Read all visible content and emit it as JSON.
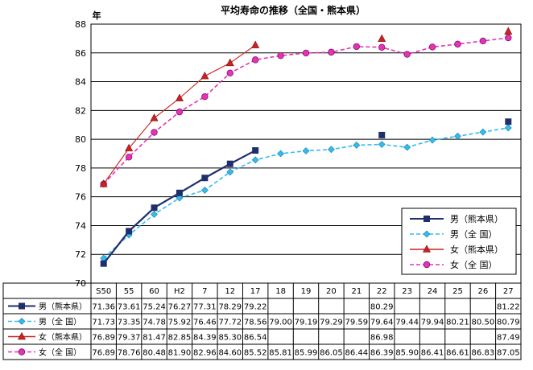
{
  "chart_data": {
    "type": "line",
    "title": "平均寿命の推移（全国・熊本県）",
    "ylabel": "年",
    "ylim": [
      70,
      88
    ],
    "yticks": [
      70,
      72,
      74,
      76,
      78,
      80,
      82,
      84,
      86,
      88
    ],
    "grid": true,
    "legend_position": "lower-right",
    "categories": [
      "S50",
      "55",
      "60",
      "H2",
      "7",
      "12",
      "17",
      "18",
      "19",
      "20",
      "21",
      "22",
      "23",
      "24",
      "25",
      "26",
      "27"
    ],
    "series": [
      {
        "name": "男（熊本県）",
        "table_label": "男（熊本県）",
        "color": "#1f2f6b",
        "style": "solid",
        "marker": "square",
        "segments": [
          [
            0,
            6
          ]
        ],
        "values": [
          71.36,
          73.61,
          75.24,
          76.27,
          77.31,
          78.29,
          79.22,
          null,
          null,
          null,
          null,
          80.29,
          null,
          null,
          null,
          null,
          81.22
        ],
        "table_values": [
          "71.36",
          "73.61",
          "75.24",
          "76.27",
          "77.31",
          "78.29",
          "79.22",
          "",
          "",
          "",
          "",
          "80.29",
          "",
          "",
          "",
          "",
          "81.22"
        ]
      },
      {
        "name": "男（全 国）",
        "table_label": "男（全 国）",
        "color": "#33bbee",
        "style": "dashed",
        "marker": "diamond",
        "segments": [
          [
            0,
            16
          ]
        ],
        "values": [
          71.73,
          73.35,
          74.78,
          75.92,
          76.46,
          77.72,
          78.56,
          79.0,
          79.19,
          79.29,
          79.59,
          79.64,
          79.44,
          79.94,
          80.21,
          80.5,
          80.79
        ],
        "table_values": [
          "71.73",
          "73.35",
          "74.78",
          "75.92",
          "76.46",
          "77.72",
          "78.56",
          "79.00",
          "79.19",
          "79.29",
          "79.59",
          "79.64",
          "79.44",
          "79.94",
          "80.21",
          "80.50",
          "80.79"
        ]
      },
      {
        "name": "女（熊本県）",
        "table_label": "女（熊本県）",
        "color": "#cc2222",
        "style": "solid",
        "marker": "triangle",
        "segments": [
          [
            0,
            6
          ]
        ],
        "values": [
          76.89,
          79.37,
          81.47,
          82.85,
          84.39,
          85.3,
          86.54,
          null,
          null,
          null,
          null,
          86.98,
          null,
          null,
          null,
          null,
          87.49
        ],
        "table_values": [
          "76.89",
          "79.37",
          "81.47",
          "82.85",
          "84.39",
          "85.30",
          "86.54",
          "",
          "",
          "",
          "",
          "86.98",
          "",
          "",
          "",
          "",
          "87.49"
        ]
      },
      {
        "name": "女（全 国）",
        "table_label": "女（全 国）",
        "color": "#e633b3",
        "style": "dashed",
        "marker": "circle",
        "segments": [
          [
            0,
            16
          ]
        ],
        "values": [
          76.89,
          78.76,
          80.48,
          81.9,
          82.96,
          84.6,
          85.52,
          85.81,
          85.99,
          86.05,
          86.44,
          86.39,
          85.9,
          86.41,
          86.61,
          86.83,
          87.05
        ],
        "table_values": [
          "76.89",
          "78.76",
          "80.48",
          "81.90",
          "82.96",
          "84.60",
          "85.52",
          "85.81",
          "85.99",
          "86.05",
          "86.44",
          "86.39",
          "85.90",
          "86.41",
          "86.61",
          "86.83",
          "87.05"
        ]
      }
    ]
  }
}
